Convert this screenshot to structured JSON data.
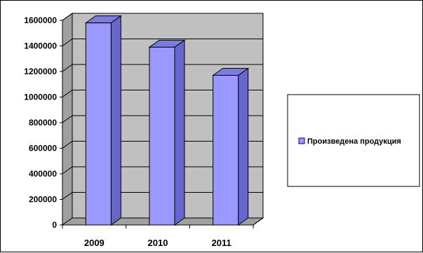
{
  "chart_data": {
    "type": "bar",
    "categories": [
      "2009",
      "2010",
      "2011"
    ],
    "series": [
      {
        "name": "Произведена продукция",
        "values": [
          1580000,
          1390000,
          1170000
        ]
      }
    ],
    "ylim": [
      0,
      1600000
    ],
    "yticks": [
      0,
      200000,
      400000,
      600000,
      800000,
      1000000,
      1200000,
      1400000,
      1600000
    ],
    "ytick_labels": [
      "0",
      "200000",
      "400000",
      "600000",
      "800000",
      "1000000",
      "1200000",
      "1400000",
      "1600000"
    ],
    "grid": true,
    "three_d": true,
    "legend_position": "right",
    "colors": {
      "bar_front": "#9999ff",
      "bar_side": "#6666cc",
      "bar_top": "#7b7be0",
      "wall": "#c0c0c0",
      "floor": "#a0a0a0",
      "legend_swatch": "#9999ff"
    }
  }
}
